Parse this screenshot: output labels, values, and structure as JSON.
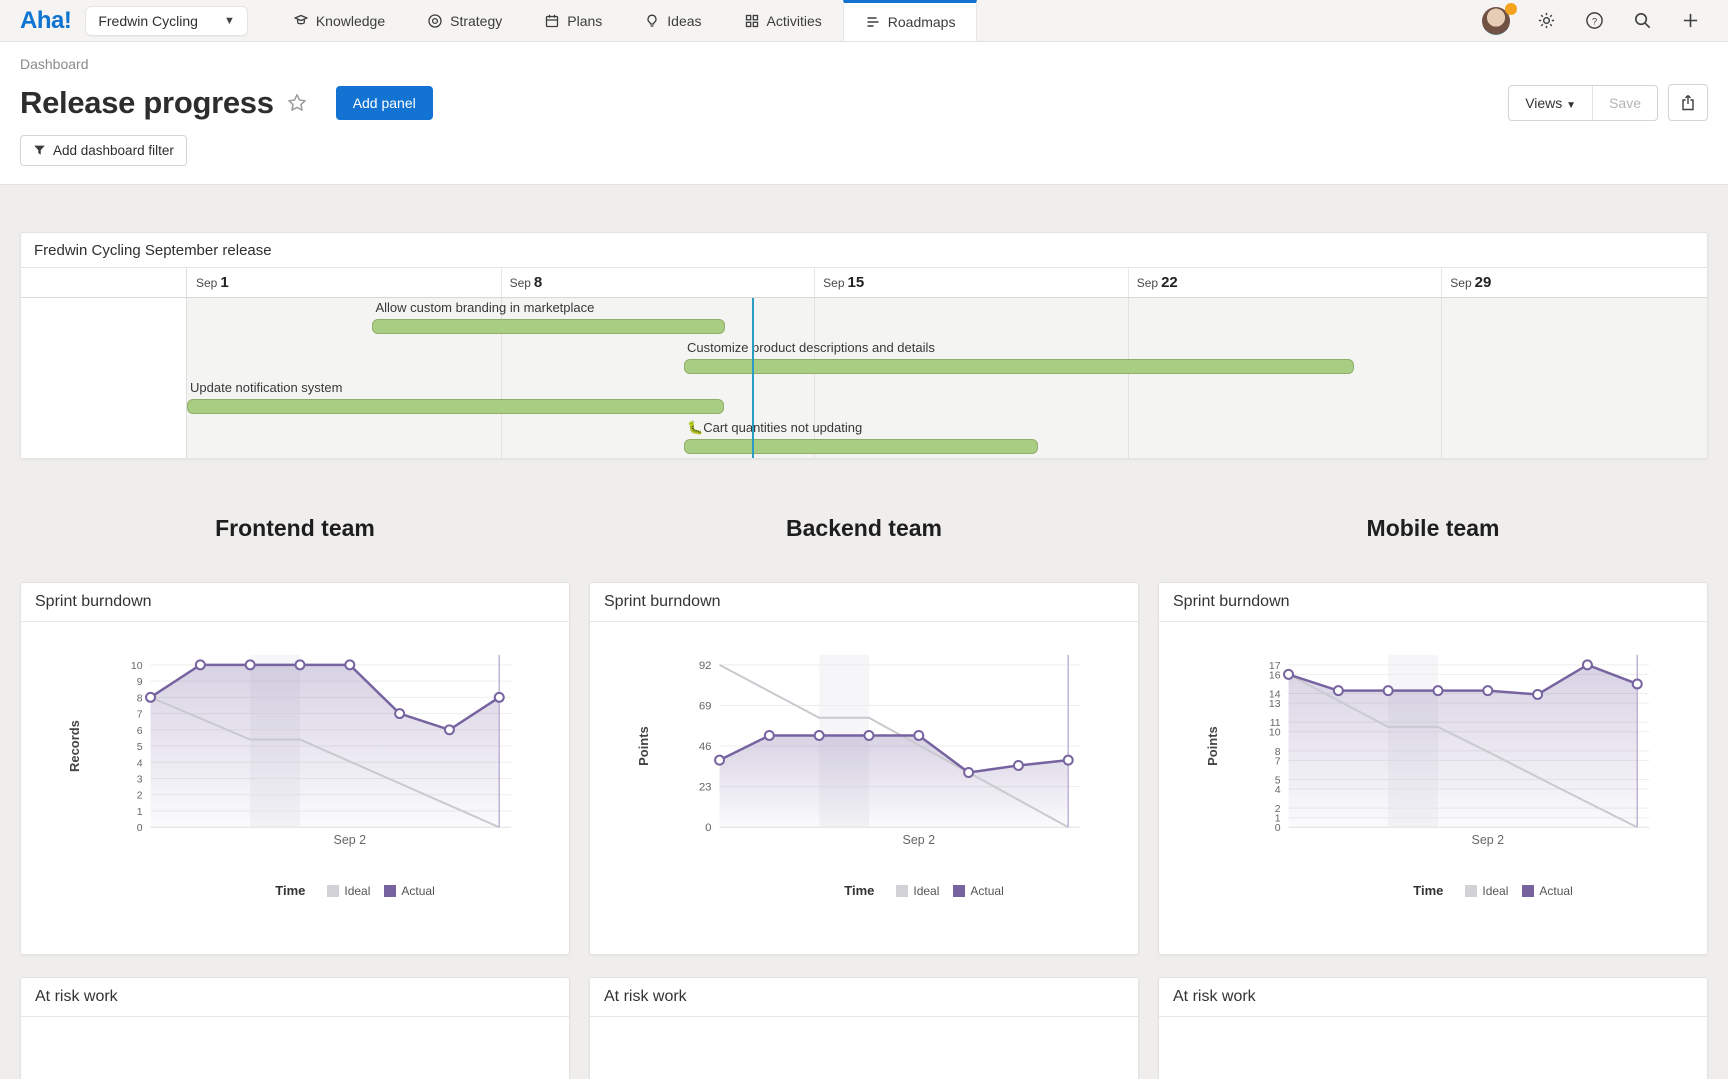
{
  "nav": {
    "brand": "Aha!",
    "workspace": "Fredwin Cycling",
    "items": [
      {
        "label": "Knowledge",
        "icon": "knowledge-icon",
        "active": false
      },
      {
        "label": "Strategy",
        "icon": "strategy-icon",
        "active": false
      },
      {
        "label": "Plans",
        "icon": "plans-icon",
        "active": false
      },
      {
        "label": "Ideas",
        "icon": "ideas-icon",
        "active": false
      },
      {
        "label": "Activities",
        "icon": "activities-icon",
        "active": false
      },
      {
        "label": "Roadmaps",
        "icon": "roadmaps-icon",
        "active": true
      }
    ]
  },
  "header": {
    "breadcrumb": "Dashboard",
    "title": "Release progress",
    "add_panel": "Add panel",
    "views": "Views",
    "save": "Save",
    "add_filter": "Add dashboard filter"
  },
  "gantt": {
    "title": "Fredwin Cycling September release",
    "columns": [
      {
        "month": "Sep",
        "day": "1"
      },
      {
        "month": "Sep",
        "day": "8"
      },
      {
        "month": "Sep",
        "day": "15"
      },
      {
        "month": "Sep",
        "day": "22"
      },
      {
        "month": "Sep",
        "day": "29"
      }
    ],
    "col_width_pct": 20.63,
    "today_pct": 37.2,
    "rows": [
      {
        "label": "Allow custom branding in marketplace",
        "start_pct": 12.2,
        "width_pct": 23.2
      },
      {
        "label": "Customize product descriptions and details",
        "start_pct": 32.7,
        "width_pct": 44.1
      },
      {
        "label": "Update notification system",
        "start_pct": 0,
        "width_pct": 35.3
      },
      {
        "label": "🐛Cart quantities not updating",
        "start_pct": 32.7,
        "width_pct": 23.3
      }
    ]
  },
  "teams": [
    "Frontend team",
    "Backend team",
    "Mobile team"
  ],
  "panel_titles": {
    "burndown": "Sprint burndown",
    "at_risk": "At risk work"
  },
  "legend": {
    "title": "Time",
    "ideal": "Ideal",
    "actual": "Actual"
  },
  "chart_data": [
    {
      "type": "line",
      "team": "Frontend team",
      "title": "Sprint burndown",
      "ylabel": "Records",
      "xlabel": "Sep 2",
      "xlabel_index": 4,
      "x": [
        0,
        1,
        2,
        3,
        4,
        5,
        6,
        7
      ],
      "ymax": 10,
      "yticks": [
        10,
        9,
        8,
        7,
        6,
        5,
        4,
        3,
        2,
        1,
        0
      ],
      "weekend_band": [
        2,
        3
      ],
      "end_line_x": 7,
      "series": [
        {
          "name": "Ideal",
          "values": [
            8,
            6.7,
            5.4,
            5.4,
            4.05,
            2.7,
            1.35,
            0
          ]
        },
        {
          "name": "Actual",
          "values": [
            8,
            10,
            10,
            10,
            10,
            7,
            6,
            8
          ]
        }
      ],
      "legend_position": "bottom",
      "grid": true
    },
    {
      "type": "line",
      "team": "Backend team",
      "title": "Sprint burndown",
      "ylabel": "Points",
      "xlabel": "Sep 2",
      "xlabel_index": 4,
      "x": [
        0,
        1,
        2,
        3,
        4,
        5,
        6,
        7
      ],
      "ymax": 92,
      "yticks": [
        92,
        69,
        46,
        23,
        0
      ],
      "weekend_band": [
        2,
        3
      ],
      "end_line_x": 7,
      "series": [
        {
          "name": "Ideal",
          "values": [
            92,
            77,
            62,
            62,
            46.5,
            31,
            15.5,
            0
          ]
        },
        {
          "name": "Actual",
          "values": [
            38,
            52,
            52,
            52,
            52,
            31,
            35,
            38
          ]
        }
      ],
      "legend_position": "bottom",
      "grid": true
    },
    {
      "type": "line",
      "team": "Mobile team",
      "title": "Sprint burndown",
      "ylabel": "Points",
      "xlabel": "Sep 2",
      "xlabel_index": 4,
      "x": [
        0,
        1,
        2,
        3,
        4,
        5,
        6,
        7
      ],
      "ymax": 17,
      "yticks": [
        17,
        16,
        14,
        13,
        11,
        10,
        8,
        7,
        5,
        4,
        2,
        1,
        0
      ],
      "weekend_band": [
        2,
        3
      ],
      "end_line_x": 7,
      "series": [
        {
          "name": "Ideal",
          "values": [
            16,
            13.25,
            10.5,
            10.5,
            7.9,
            5.25,
            2.6,
            0
          ]
        },
        {
          "name": "Actual",
          "values": [
            16,
            14.3,
            14.3,
            14.3,
            14.3,
            13.9,
            17,
            15
          ]
        }
      ],
      "legend_position": "bottom",
      "grid": true
    }
  ],
  "colors": {
    "accent": "#1273d2",
    "brand": "#0d74d1",
    "bar_fill": "#a9cd83",
    "bar_border": "#8fae68",
    "today_line": "#2b9dc3",
    "actual": "#77639f",
    "ideal": "#c9c9cf",
    "legend_ideal_swatch": "#d2d2d6",
    "legend_actual_swatch": "#77639f"
  }
}
